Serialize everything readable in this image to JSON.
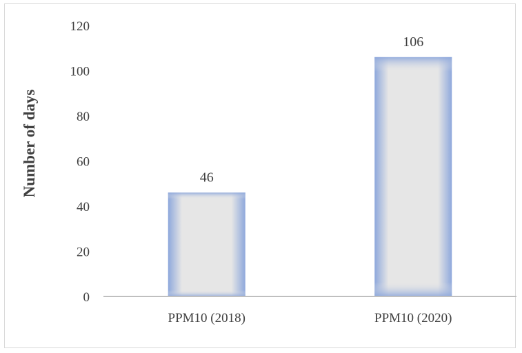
{
  "chart_data": {
    "type": "bar",
    "categories": [
      "PPM10 (2018)",
      "PPM10 (2020)"
    ],
    "values": [
      46,
      106
    ],
    "data_labels": [
      "46",
      "106"
    ],
    "title": "",
    "xlabel": "",
    "ylabel": "Number of days",
    "ylim": [
      0,
      120
    ],
    "yticks": [
      "0",
      "20",
      "40",
      "60",
      "80",
      "100",
      "120"
    ],
    "grid": false,
    "legend": "none",
    "colors": {
      "bar_fill_center": "#e6e6e6",
      "bar_edge": "#8ea8dc",
      "axis": "#bfbfbf",
      "text": "#404040"
    }
  }
}
